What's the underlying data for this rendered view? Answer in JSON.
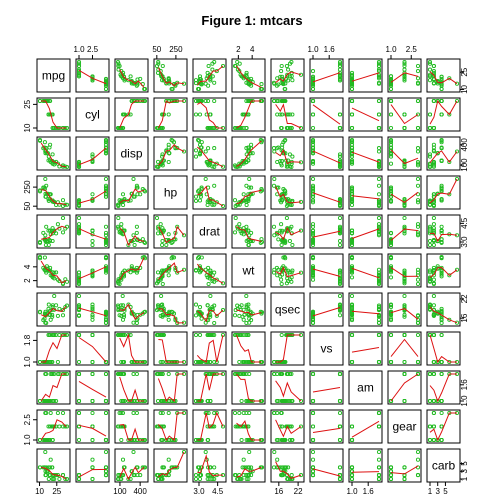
{
  "chart_data": {
    "type": "scatter",
    "title": "Figure 1: mtcars",
    "variables": [
      "mpg",
      "cyl",
      "disp",
      "hp",
      "drat",
      "wt",
      "qsec",
      "vs",
      "am",
      "gear",
      "carb"
    ],
    "ranges": {
      "mpg": [
        10.4,
        33.9
      ],
      "cyl": [
        4,
        8
      ],
      "disp": [
        71.1,
        472
      ],
      "hp": [
        52,
        335
      ],
      "drat": [
        2.76,
        4.93
      ],
      "wt": [
        1.513,
        5.424
      ],
      "qsec": [
        14.5,
        22.9
      ],
      "vs": [
        0,
        1
      ],
      "am": [
        0,
        1
      ],
      "gear": [
        3,
        5
      ],
      "carb": [
        1,
        8
      ]
    },
    "axis_ticks": {
      "top": [
        {
          "var": "cyl",
          "ticks": [
            "1.0",
            "2.5"
          ],
          "values": [
            4.0,
            6.0
          ]
        },
        {
          "var": "hp",
          "ticks": [
            "50",
            "250"
          ],
          "values": [
            50,
            250
          ]
        },
        {
          "var": "wt",
          "ticks": [
            "2",
            "4"
          ],
          "values": [
            2,
            4
          ]
        },
        {
          "var": "vs",
          "ticks": [
            "1.0",
            "1.6"
          ],
          "values": [
            0.0,
            0.6
          ]
        },
        {
          "var": "gear",
          "ticks": [
            "1.0",
            "2.5"
          ],
          "values": [
            3.0,
            4.5
          ]
        }
      ],
      "bottom": [
        {
          "var": "mpg",
          "ticks": [
            "10",
            "25"
          ],
          "values": [
            10,
            25
          ]
        },
        {
          "var": "disp",
          "ticks": [
            "100",
            "400"
          ],
          "values": [
            100,
            400
          ]
        },
        {
          "var": "drat",
          "ticks": [
            "3.0",
            "4.5"
          ],
          "values": [
            3.0,
            4.5
          ]
        },
        {
          "var": "qsec",
          "ticks": [
            "16",
            "22"
          ],
          "values": [
            16,
            22
          ]
        },
        {
          "var": "am",
          "ticks": [
            "1.0",
            "1.6"
          ],
          "values": [
            0.0,
            0.6
          ]
        },
        {
          "var": "carb",
          "ticks": [
            "1",
            "3",
            "5"
          ],
          "values": [
            1,
            3,
            5
          ]
        }
      ],
      "left": [
        {
          "var": "cyl",
          "ticks": [
            "10",
            "25"
          ],
          "values": [
            4.0,
            7.5
          ]
        },
        {
          "var": "hp",
          "ticks": [
            "50",
            "250"
          ],
          "values": [
            50,
            250
          ]
        },
        {
          "var": "wt",
          "ticks": [
            "2",
            "4"
          ],
          "values": [
            2,
            4
          ]
        },
        {
          "var": "vs",
          "ticks": [
            "1.0",
            "1.8"
          ],
          "values": [
            0.0,
            0.8
          ]
        },
        {
          "var": "gear",
          "ticks": [
            "1.0",
            "2.5"
          ],
          "values": [
            3.0,
            4.5
          ]
        }
      ],
      "right": [
        {
          "var": "mpg",
          "ticks": [
            "10",
            "25"
          ],
          "values": [
            10,
            25
          ]
        },
        {
          "var": "disp",
          "ticks": [
            "100",
            "400"
          ],
          "values": [
            100,
            400
          ]
        },
        {
          "var": "drat",
          "ticks": [
            "3.0",
            "4.5"
          ],
          "values": [
            3.0,
            4.5
          ]
        },
        {
          "var": "qsec",
          "ticks": [
            "16",
            "22"
          ],
          "values": [
            16,
            22
          ]
        },
        {
          "var": "am",
          "ticks": [
            "1.0",
            "1.6"
          ],
          "values": [
            0.0,
            0.6
          ]
        },
        {
          "var": "carb",
          "ticks": [
            "1",
            "3",
            "5"
          ],
          "values": [
            1,
            3,
            5
          ]
        }
      ]
    },
    "points": [
      [
        21.0,
        6,
        160.0,
        110,
        3.9,
        2.62,
        16.46,
        0,
        1,
        4,
        4
      ],
      [
        21.0,
        6,
        160.0,
        110,
        3.9,
        2.875,
        17.02,
        0,
        1,
        4,
        4
      ],
      [
        22.8,
        4,
        108.0,
        93,
        3.85,
        2.32,
        18.61,
        1,
        1,
        4,
        1
      ],
      [
        21.4,
        6,
        258.0,
        110,
        3.08,
        3.215,
        19.44,
        1,
        0,
        3,
        1
      ],
      [
        18.7,
        8,
        360.0,
        175,
        3.15,
        3.44,
        17.02,
        0,
        0,
        3,
        2
      ],
      [
        18.1,
        6,
        225.0,
        105,
        2.76,
        3.46,
        20.22,
        1,
        0,
        3,
        1
      ],
      [
        14.3,
        8,
        360.0,
        245,
        3.21,
        3.57,
        15.84,
        0,
        0,
        3,
        4
      ],
      [
        24.4,
        4,
        146.7,
        62,
        3.69,
        3.19,
        20.0,
        1,
        0,
        4,
        2
      ],
      [
        22.8,
        4,
        140.8,
        95,
        3.92,
        3.15,
        22.9,
        1,
        0,
        4,
        2
      ],
      [
        19.2,
        6,
        167.6,
        123,
        3.92,
        3.44,
        18.3,
        1,
        0,
        4,
        4
      ],
      [
        17.8,
        6,
        167.6,
        123,
        3.92,
        3.44,
        18.9,
        1,
        0,
        4,
        4
      ],
      [
        16.4,
        8,
        275.8,
        180,
        3.07,
        4.07,
        17.4,
        0,
        0,
        3,
        3
      ],
      [
        17.3,
        8,
        275.8,
        180,
        3.07,
        3.73,
        17.6,
        0,
        0,
        3,
        3
      ],
      [
        15.2,
        8,
        275.8,
        180,
        3.07,
        3.78,
        18.0,
        0,
        0,
        3,
        3
      ],
      [
        10.4,
        8,
        472.0,
        205,
        2.93,
        5.25,
        17.98,
        0,
        0,
        3,
        4
      ],
      [
        10.4,
        8,
        460.0,
        215,
        3.0,
        5.424,
        17.82,
        0,
        0,
        3,
        4
      ],
      [
        14.7,
        8,
        440.0,
        230,
        3.23,
        5.345,
        17.42,
        0,
        0,
        3,
        4
      ],
      [
        32.4,
        4,
        78.7,
        66,
        4.08,
        2.2,
        19.47,
        1,
        1,
        4,
        1
      ],
      [
        30.4,
        4,
        75.7,
        52,
        4.93,
        1.615,
        18.52,
        1,
        1,
        4,
        2
      ],
      [
        33.9,
        4,
        71.1,
        65,
        4.22,
        1.835,
        19.9,
        1,
        1,
        4,
        1
      ],
      [
        21.5,
        4,
        120.1,
        97,
        3.7,
        2.465,
        20.01,
        1,
        0,
        3,
        1
      ],
      [
        15.5,
        8,
        318.0,
        150,
        2.76,
        3.52,
        16.87,
        0,
        0,
        3,
        2
      ],
      [
        15.2,
        8,
        304.0,
        150,
        3.15,
        3.435,
        17.3,
        0,
        0,
        3,
        2
      ],
      [
        13.3,
        8,
        350.0,
        245,
        3.73,
        3.84,
        15.41,
        0,
        0,
        3,
        4
      ],
      [
        19.2,
        8,
        400.0,
        175,
        3.08,
        3.845,
        17.05,
        0,
        0,
        3,
        2
      ],
      [
        27.3,
        4,
        79.0,
        66,
        4.08,
        1.935,
        18.9,
        1,
        1,
        4,
        1
      ],
      [
        26.0,
        4,
        120.3,
        91,
        4.43,
        2.14,
        16.7,
        0,
        1,
        5,
        2
      ],
      [
        30.4,
        4,
        95.1,
        113,
        3.77,
        1.513,
        16.9,
        1,
        1,
        5,
        2
      ],
      [
        15.8,
        8,
        351.0,
        264,
        4.22,
        3.17,
        14.5,
        0,
        1,
        5,
        4
      ],
      [
        19.7,
        6,
        145.0,
        175,
        3.62,
        2.77,
        15.5,
        0,
        1,
        5,
        6
      ],
      [
        15.0,
        8,
        301.0,
        335,
        3.54,
        3.57,
        14.6,
        0,
        1,
        5,
        8
      ],
      [
        21.4,
        4,
        121.0,
        109,
        4.11,
        2.78,
        18.6,
        1,
        1,
        4,
        2
      ]
    ],
    "point_color": "#22bb22",
    "smooth_color": "#dd1111",
    "grid": false
  }
}
